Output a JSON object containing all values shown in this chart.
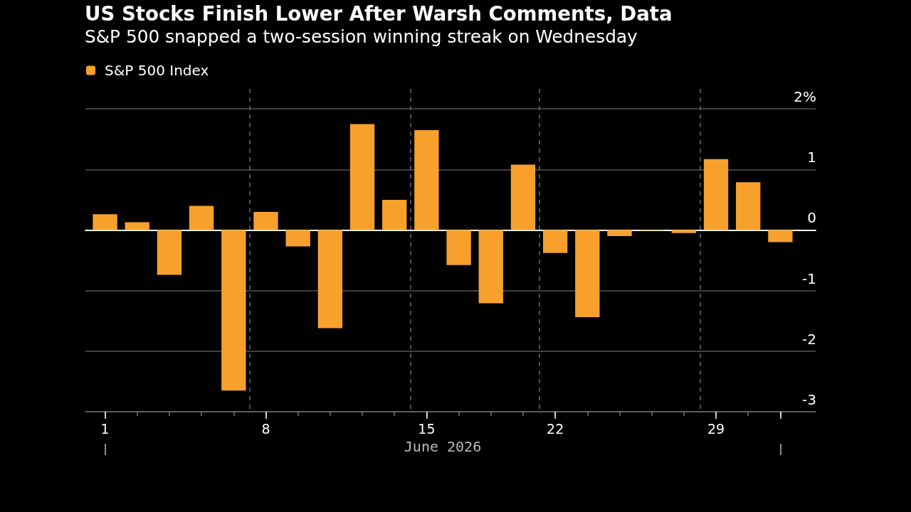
{
  "chart_data": {
    "type": "bar",
    "title": "US Stocks Finish Lower After Warsh Comments, Data",
    "subtitle": "S&P 500 snapped a two-session winning streak on Wednesday",
    "xlabel": "June 2026",
    "categories": [
      "1",
      null,
      null,
      null,
      null,
      "8",
      null,
      null,
      null,
      null,
      "15",
      null,
      null,
      null,
      "22",
      null,
      null,
      null,
      null,
      "29",
      null,
      null
    ],
    "series": [
      {
        "name": "S&P 500 Index",
        "color": "#f7a12c",
        "values": [
          0.26,
          0.13,
          -0.74,
          0.4,
          -2.65,
          0.3,
          -0.27,
          -1.62,
          1.75,
          0.5,
          1.65,
          -0.58,
          -1.21,
          1.08,
          -0.38,
          -1.44,
          -0.1,
          -0.01,
          -0.05,
          1.17,
          0.79,
          -0.2
        ]
      }
    ],
    "ylim": [
      -3,
      2.33
    ],
    "yticks": [
      -3,
      -2,
      -1,
      0,
      1,
      {
        "value": 2,
        "label": "2%"
      }
    ],
    "grid": true,
    "legend": "top left"
  }
}
